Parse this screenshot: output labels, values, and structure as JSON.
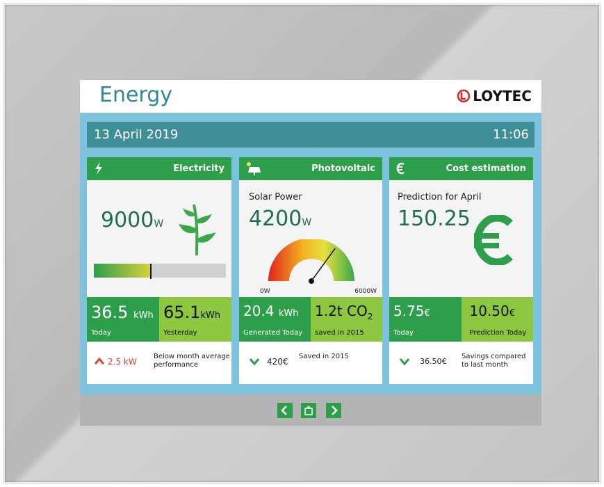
{
  "header": {
    "title": "Energy",
    "logo": "LOYTEC"
  },
  "status_bar": {
    "date": "13 April 2019",
    "time": "11:06"
  },
  "panels": [
    {
      "title": "Electricity",
      "main_value": "9000",
      "main_unit": "W",
      "tiles": [
        {
          "value": "36.5",
          "unit": "kWh",
          "label": "Today"
        },
        {
          "value": "65.1",
          "unit": "kWh",
          "label": "Yesterday"
        }
      ],
      "footer": {
        "value": "2.5 kW",
        "text": "Below month average performance"
      }
    },
    {
      "title": "Photovoltaic",
      "subtitle": "Solar Power",
      "main_value": "4200",
      "main_unit": "W",
      "gauge": {
        "min": 0,
        "max": 6000,
        "unit": "W"
      },
      "tiles": [
        {
          "value": "20.4",
          "unit": "kWh",
          "label": "Generated Today"
        },
        {
          "value": "1.2t CO",
          "unit": "2",
          "label": "saved in 2015"
        }
      ],
      "footer": {
        "value": "420€",
        "text": "Saved in 2015"
      }
    },
    {
      "title": "Cost estimation",
      "subtitle": "Prediction for April",
      "main_value": "150.25",
      "tiles": [
        {
          "value": "5.75",
          "unit": "€",
          "label": "Today"
        },
        {
          "value": "10.50",
          "unit": "€",
          "label": "Prediction Today"
        }
      ],
      "footer": {
        "value": "36.50€",
        "text": "Savings compared to last month"
      }
    }
  ]
}
